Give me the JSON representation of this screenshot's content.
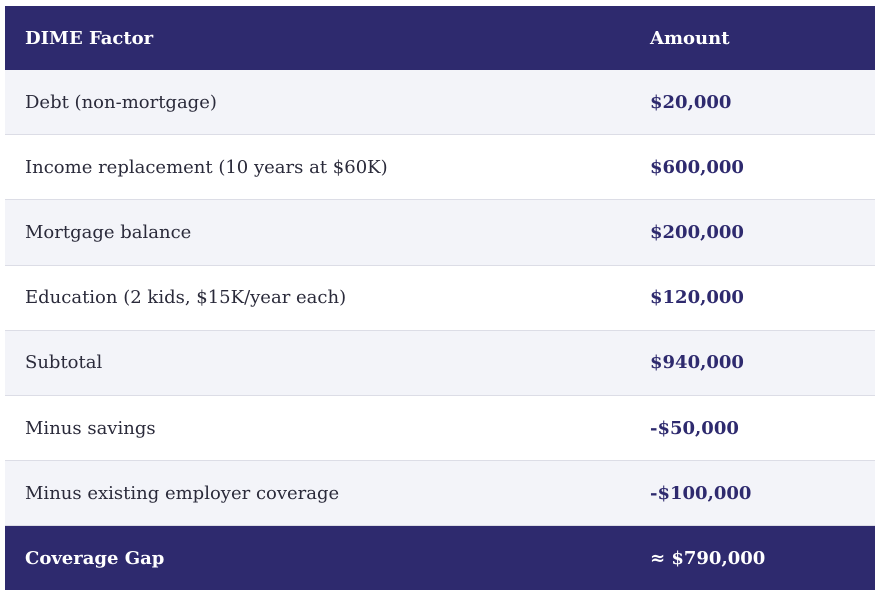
{
  "table": {
    "header": {
      "factor": "DIME Factor",
      "amount": "Amount"
    },
    "rows": [
      {
        "factor": "Debt (non-mortgage)",
        "amount": "$20,000"
      },
      {
        "factor": "Income replacement (10 years at $60K)",
        "amount": "$600,000"
      },
      {
        "factor": "Mortgage balance",
        "amount": "$200,000"
      },
      {
        "factor": "Education (2 kids, $15K/year each)",
        "amount": "$120,000"
      },
      {
        "factor": "Subtotal",
        "amount": "$940,000"
      },
      {
        "factor": "Minus savings",
        "amount": "-$50,000"
      },
      {
        "factor": "Minus existing employer coverage",
        "amount": "-$100,000"
      }
    ],
    "footer": {
      "factor": "Coverage Gap",
      "amount": "≈ $790,000"
    }
  },
  "colors": {
    "header_bg": "#2e2a6e",
    "alt_row_bg": "#f3f4f9",
    "amount_text": "#2e2a6e"
  }
}
